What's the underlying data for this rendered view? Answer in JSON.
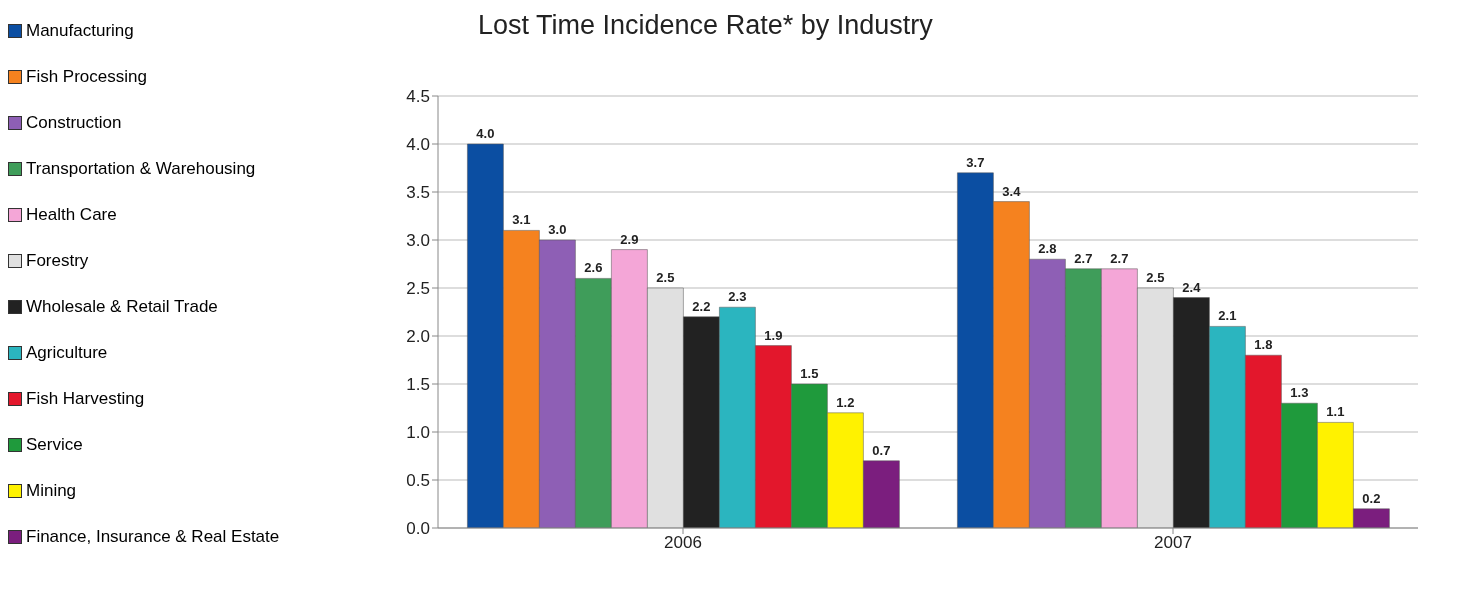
{
  "chart_data": {
    "type": "bar",
    "title": "Lost Time Incidence Rate* by Industry",
    "categories": [
      "2006",
      "2007"
    ],
    "series": [
      {
        "name": "Manufacturing",
        "color": "#0b4ea2",
        "values": [
          4.0,
          3.7
        ],
        "value_labels": [
          "4.0",
          "3.7"
        ]
      },
      {
        "name": "Fish Processing",
        "color": "#f5821f",
        "values": [
          3.1,
          3.4
        ],
        "value_labels": [
          "3.1",
          "3.4"
        ]
      },
      {
        "name": "Construction",
        "color": "#8e5fb5",
        "values": [
          3.0,
          2.8
        ],
        "value_labels": [
          "3.0",
          "2.8"
        ]
      },
      {
        "name": "Transportation & Warehousing",
        "color": "#3f9d5a",
        "values": [
          2.6,
          2.7
        ],
        "value_labels": [
          "2.6",
          "2.7"
        ]
      },
      {
        "name": "Health Care",
        "color": "#f4a6d7",
        "values": [
          2.9,
          2.7
        ],
        "value_labels": [
          "2.9",
          "2.7"
        ]
      },
      {
        "name": "Forestry",
        "color": "#e0e0e0",
        "values": [
          2.5,
          2.5
        ],
        "value_labels": [
          "2.5",
          "2.5"
        ]
      },
      {
        "name": "Wholesale & Retail Trade",
        "color": "#222222",
        "values": [
          2.2,
          2.4
        ],
        "value_labels": [
          "2.2",
          "2.4"
        ]
      },
      {
        "name": "Agriculture",
        "color": "#2bb5bf",
        "values": [
          2.3,
          2.1
        ],
        "value_labels": [
          "2.3",
          "2.1"
        ]
      },
      {
        "name": "Fish Harvesting",
        "color": "#e3172c",
        "values": [
          1.9,
          1.8
        ],
        "value_labels": [
          "1.9",
          "1.8"
        ]
      },
      {
        "name": "Service",
        "color": "#1f9a3c",
        "values": [
          1.5,
          1.3
        ],
        "value_labels": [
          "1.5",
          "1.3"
        ]
      },
      {
        "name": "Mining",
        "color": "#fff200",
        "values": [
          1.2,
          1.1
        ],
        "value_labels": [
          "1.2",
          "1.1"
        ]
      },
      {
        "name": "Finance, Insurance & Real Estate",
        "color": "#7b1e7e",
        "values": [
          0.7,
          0.2
        ],
        "value_labels": [
          "0.7",
          "0.2"
        ]
      }
    ],
    "ylim": [
      0,
      4.5
    ],
    "yticks": [
      {
        "value": 0,
        "label": "0.0"
      },
      {
        "value": 0.5,
        "label": "0.5"
      },
      {
        "value": 1,
        "label": "1.0"
      },
      {
        "value": 1.5,
        "label": "1.5"
      },
      {
        "value": 2,
        "label": "2.0"
      },
      {
        "value": 2.5,
        "label": "2.5"
      },
      {
        "value": 3,
        "label": "3.0"
      },
      {
        "value": 3.5,
        "label": "3.5"
      },
      {
        "value": 4,
        "label": "4.0"
      },
      {
        "value": 4.5,
        "label": "4.5"
      }
    ],
    "grid": "y",
    "legend": "left"
  }
}
